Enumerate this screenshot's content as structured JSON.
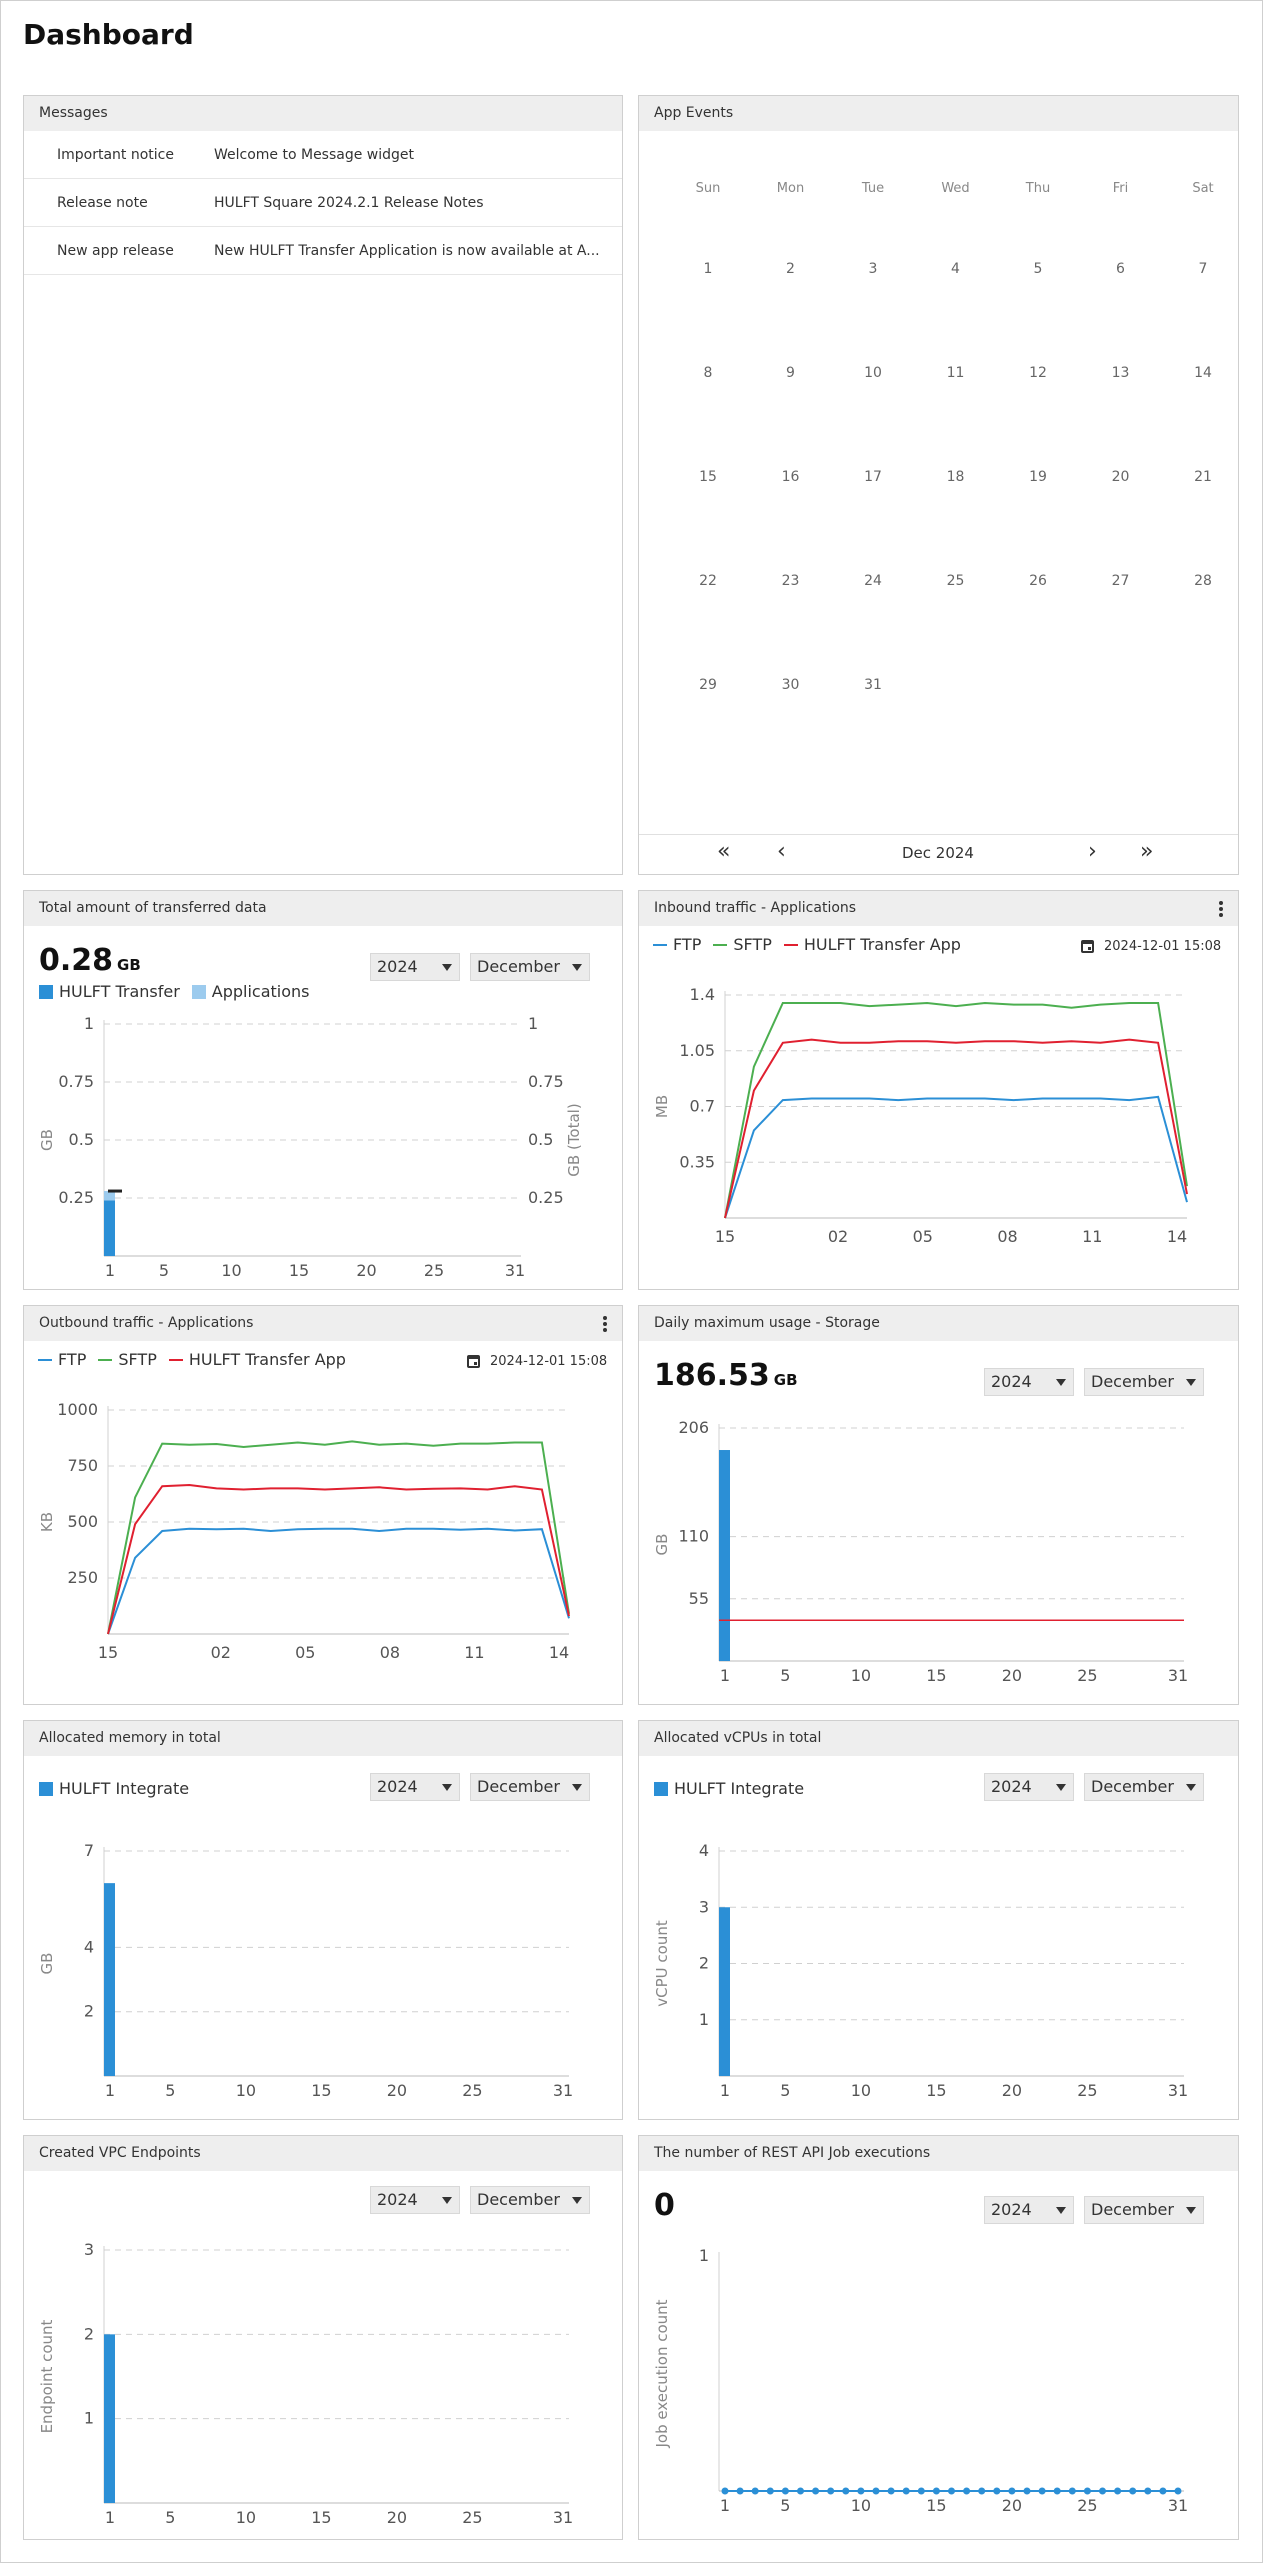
{
  "page": {
    "title": "Dashboard"
  },
  "messages": {
    "title": "Messages",
    "rows": [
      {
        "title": "Important notice",
        "body": "Welcome to Message widget"
      },
      {
        "title": "Release note",
        "body": "HULFT Square 2024.2.1 Release Notes"
      },
      {
        "title": "New app release",
        "body": "New HULFT Transfer Application is now available at A..."
      }
    ]
  },
  "app_events": {
    "title": "App Events",
    "weekdays": [
      "Sun",
      "Mon",
      "Tue",
      "Wed",
      "Thu",
      "Fri",
      "Sat"
    ],
    "days": [
      "1",
      "2",
      "3",
      "4",
      "5",
      "6",
      "7",
      "8",
      "9",
      "10",
      "11",
      "12",
      "13",
      "14",
      "15",
      "16",
      "17",
      "18",
      "19",
      "20",
      "21",
      "22",
      "23",
      "24",
      "25",
      "26",
      "27",
      "28",
      "29",
      "30",
      "31"
    ],
    "first_weekday": 0,
    "nav": {
      "first": "«",
      "prev": "‹",
      "month": "Dec 2024",
      "next": "›",
      "last": "»"
    }
  },
  "widgets": {
    "transferred": {
      "title": "Total amount of transferred data",
      "value": "0.28",
      "unit": "GB",
      "year": "2024",
      "month": "December",
      "legend": [
        "HULFT Transfer",
        "Applications"
      ]
    },
    "inbound": {
      "title": "Inbound traffic - Applications",
      "legend": [
        "FTP",
        "SFTP",
        "HULFT Transfer App"
      ],
      "timestamp": "2024-12-01 15:08"
    },
    "outbound": {
      "title": "Outbound traffic - Applications",
      "legend": [
        "FTP",
        "SFTP",
        "HULFT Transfer App"
      ],
      "timestamp": "2024-12-01 15:08"
    },
    "storage": {
      "title": "Daily maximum usage - Storage",
      "value": "186.53",
      "unit": "GB",
      "year": "2024",
      "month": "December"
    },
    "memory": {
      "title": "Allocated memory in total",
      "year": "2024",
      "month": "December",
      "legend": [
        "HULFT Integrate"
      ]
    },
    "vcpu": {
      "title": "Allocated vCPUs in total",
      "year": "2024",
      "month": "December",
      "legend": [
        "HULFT Integrate"
      ]
    },
    "vpc": {
      "title": "Created VPC Endpoints",
      "year": "2024",
      "month": "December"
    },
    "restapi": {
      "title": "The number of REST API Job executions",
      "value": "0",
      "year": "2024",
      "month": "December"
    }
  },
  "colors": {
    "blue": "#2b8fd6",
    "light_blue": "#9ccbee",
    "green": "#4caf50",
    "red": "#e02030",
    "ftp": "#2b8fd6",
    "grid": "#d6d6d6",
    "axis_text": "#666666"
  },
  "chart_data": [
    {
      "id": "transferred",
      "type": "bar",
      "ylabel": "GB",
      "y2label": "GB (Total)",
      "ylim": [
        0,
        1
      ],
      "yticks": [
        0.25,
        0.5,
        0.75,
        1
      ],
      "y2ticks": [
        0.25,
        0.5,
        0.75,
        1
      ],
      "xticks": [
        "1",
        "5",
        "10",
        "15",
        "20",
        "25",
        "31"
      ],
      "xlim": [
        1,
        31
      ],
      "series": [
        {
          "name": "HULFT Transfer",
          "values": [
            {
              "x": 1,
              "y": 0.24
            }
          ],
          "color": "#2b8fd6"
        },
        {
          "name": "Applications",
          "values": [
            {
              "x": 1,
              "y": 0.04
            }
          ],
          "color": "#9ccbee"
        }
      ],
      "total_marker": {
        "x": 1,
        "y": 0.28
      },
      "grid": true
    },
    {
      "id": "inbound",
      "type": "line",
      "ylabel": "MB",
      "ylim": [
        0,
        1.4
      ],
      "yticks": [
        0.35,
        0.7,
        1.05,
        1.4
      ],
      "xlim": [
        0,
        23
      ],
      "xticks": [
        {
          "x": 0,
          "label": "15"
        },
        {
          "x": 6,
          "label": "02"
        },
        {
          "x": 10.5,
          "label": "05"
        },
        {
          "x": 15,
          "label": "08"
        },
        {
          "x": 19.5,
          "label": "11"
        },
        {
          "x": 24,
          "label": "14"
        }
      ],
      "series": [
        {
          "name": "FTP",
          "color": "#2b8fd6",
          "values": [
            0,
            0.55,
            0.74,
            0.75,
            0.75,
            0.75,
            0.74,
            0.75,
            0.75,
            0.75,
            0.74,
            0.75,
            0.75,
            0.75,
            0.74,
            0.76,
            0.1
          ]
        },
        {
          "name": "SFTP",
          "color": "#4caf50",
          "values": [
            0,
            0.95,
            1.35,
            1.35,
            1.35,
            1.33,
            1.34,
            1.35,
            1.33,
            1.35,
            1.34,
            1.34,
            1.32,
            1.34,
            1.35,
            1.35,
            0.2
          ]
        },
        {
          "name": "HULFT Transfer App",
          "color": "#e02030",
          "values": [
            0,
            0.8,
            1.1,
            1.12,
            1.1,
            1.1,
            1.11,
            1.11,
            1.1,
            1.11,
            1.11,
            1.1,
            1.11,
            1.1,
            1.12,
            1.1,
            0.15
          ]
        }
      ],
      "grid": true
    },
    {
      "id": "outbound",
      "type": "line",
      "ylabel": "KB",
      "ylim": [
        0,
        1000
      ],
      "yticks": [
        250,
        500,
        750,
        1000
      ],
      "xticks": [
        {
          "x": 0,
          "label": "15"
        },
        {
          "x": 6,
          "label": "02"
        },
        {
          "x": 10.5,
          "label": "05"
        },
        {
          "x": 15,
          "label": "08"
        },
        {
          "x": 19.5,
          "label": "11"
        },
        {
          "x": 24,
          "label": "14"
        }
      ],
      "series": [
        {
          "name": "FTP",
          "color": "#2b8fd6",
          "values": [
            0,
            340,
            460,
            470,
            468,
            470,
            460,
            468,
            470,
            470,
            460,
            470,
            470,
            465,
            470,
            462,
            468,
            70
          ]
        },
        {
          "name": "SFTP",
          "color": "#4caf50",
          "values": [
            0,
            610,
            850,
            845,
            848,
            835,
            845,
            855,
            845,
            860,
            845,
            850,
            840,
            850,
            850,
            855,
            855,
            90
          ]
        },
        {
          "name": "HULFT Transfer App",
          "color": "#e02030",
          "values": [
            0,
            490,
            660,
            665,
            650,
            645,
            650,
            650,
            645,
            650,
            655,
            645,
            648,
            650,
            645,
            660,
            645,
            80
          ]
        }
      ],
      "grid": true
    },
    {
      "id": "storage",
      "type": "bar",
      "ylabel": "GB",
      "ylim": [
        0,
        206
      ],
      "yticks": [
        55,
        110,
        206
      ],
      "xticks": [
        "1",
        "5",
        "10",
        "15",
        "20",
        "25",
        "31"
      ],
      "xlim": [
        1,
        31
      ],
      "series": [
        {
          "name": "",
          "values": [
            {
              "x": 1,
              "y": 186.53
            }
          ],
          "color": "#2b8fd6"
        }
      ],
      "threshold": 36,
      "grid": true
    },
    {
      "id": "memory",
      "type": "bar",
      "ylabel": "GB",
      "ylim": [
        0,
        7
      ],
      "yticks": [
        2,
        4,
        7
      ],
      "xticks": [
        "1",
        "5",
        "10",
        "15",
        "20",
        "25",
        "31"
      ],
      "xlim": [
        1,
        31
      ],
      "series": [
        {
          "name": "HULFT Integrate",
          "values": [
            {
              "x": 1,
              "y": 6
            }
          ],
          "color": "#2b8fd6"
        }
      ],
      "grid": true
    },
    {
      "id": "vcpu",
      "type": "bar",
      "ylabel": "vCPU count",
      "ylim": [
        0,
        4
      ],
      "yticks": [
        1,
        2,
        3,
        4
      ],
      "xticks": [
        "1",
        "5",
        "10",
        "15",
        "20",
        "25",
        "31"
      ],
      "xlim": [
        1,
        31
      ],
      "series": [
        {
          "name": "HULFT Integrate",
          "values": [
            {
              "x": 1,
              "y": 3
            }
          ],
          "color": "#2b8fd6"
        }
      ],
      "grid": true
    },
    {
      "id": "vpc",
      "type": "bar",
      "ylabel": "Endpoint count",
      "ylim": [
        0,
        3
      ],
      "yticks": [
        1,
        2,
        3
      ],
      "xticks": [
        "1",
        "5",
        "10",
        "15",
        "20",
        "25",
        "31"
      ],
      "xlim": [
        1,
        31
      ],
      "series": [
        {
          "name": "",
          "values": [
            {
              "x": 1,
              "y": 2
            }
          ],
          "color": "#2b8fd6"
        }
      ],
      "grid": true
    },
    {
      "id": "restapi",
      "type": "line",
      "ylabel": "Job execution count",
      "ylim": [
        0,
        1
      ],
      "yticks": [
        1
      ],
      "xticks": [
        "1",
        "5",
        "10",
        "15",
        "20",
        "25",
        "31"
      ],
      "xlim": [
        1,
        31
      ],
      "series": [
        {
          "name": "",
          "color": "#2b8fd6",
          "values": [
            0,
            0,
            0,
            0,
            0,
            0,
            0,
            0,
            0,
            0,
            0,
            0,
            0,
            0,
            0,
            0,
            0,
            0,
            0,
            0,
            0,
            0,
            0,
            0,
            0,
            0,
            0,
            0,
            0,
            0,
            0
          ],
          "markers": true
        }
      ],
      "grid": false
    }
  ]
}
